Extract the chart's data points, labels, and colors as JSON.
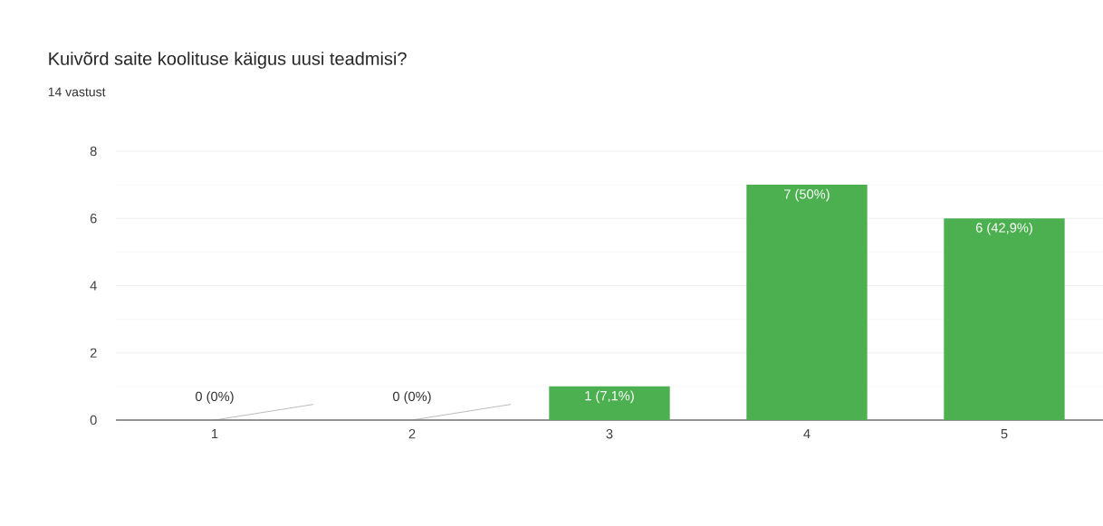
{
  "chart_data": {
    "type": "bar",
    "title": "Kuivõrd saite koolituse käigus uusi teadmisi?",
    "subtitle": "14 vastust",
    "categories": [
      "1",
      "2",
      "3",
      "4",
      "5"
    ],
    "values": [
      0,
      0,
      1,
      7,
      6
    ],
    "value_labels": [
      "0 (0%)",
      "0 (0%)",
      "1 (7,1%)",
      "7 (50%)",
      "6 (42,9%)"
    ],
    "color": "#4caf50",
    "ylim": [
      0,
      8
    ],
    "yticks": [
      0,
      2,
      4,
      6,
      8
    ],
    "grid": "y"
  }
}
